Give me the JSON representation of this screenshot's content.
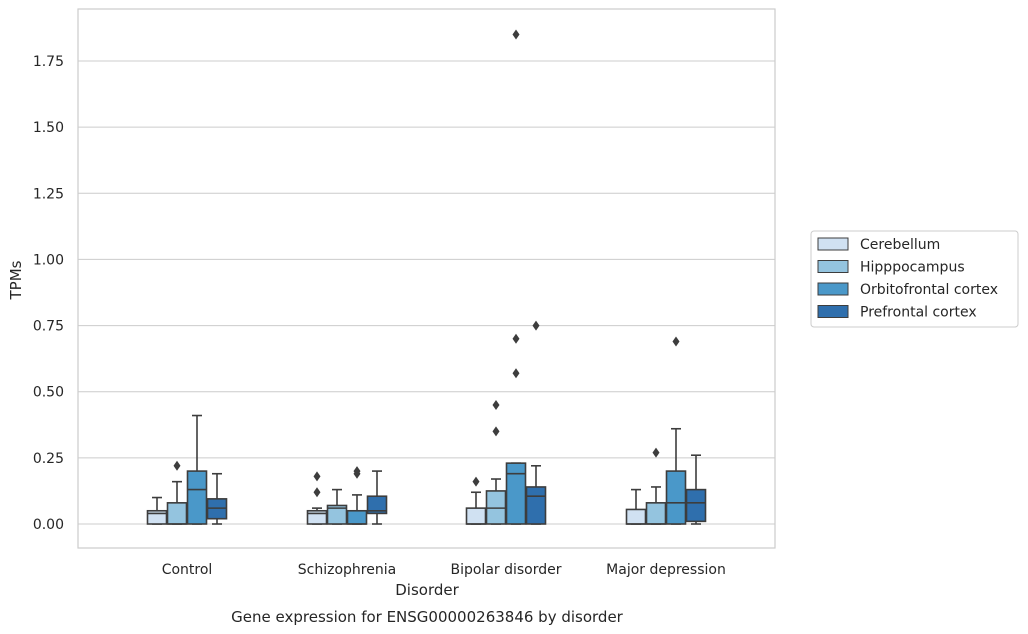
{
  "chart_data": {
    "type": "box",
    "title": "",
    "caption": "Gene expression for ENSG00000263846 by disorder",
    "xlabel": "Disorder",
    "ylabel": "TPMs",
    "ylim": [
      -0.09,
      1.95
    ],
    "yticks": [
      0.0,
      0.25,
      0.5,
      0.75,
      1.0,
      1.25,
      1.5,
      1.75
    ],
    "ytick_labels": [
      "0.00",
      "0.25",
      "0.50",
      "0.75",
      "1.00",
      "1.25",
      "1.50",
      "1.75"
    ],
    "grid": "horizontal",
    "legend_position": "right",
    "categories": [
      "Control",
      "Schizophrenia",
      "Bipolar disorder",
      "Major depression"
    ],
    "series": [
      {
        "name": "Cerebellum",
        "color": "#d0e1f2",
        "boxes": [
          {
            "whisker_low": 0.0,
            "q1": 0.0,
            "median": 0.04,
            "q3": 0.05,
            "whisker_high": 0.1,
            "outliers": []
          },
          {
            "whisker_low": 0.0,
            "q1": 0.0,
            "median": 0.04,
            "q3": 0.05,
            "whisker_high": 0.06,
            "outliers": [
              0.12,
              0.18
            ]
          },
          {
            "whisker_low": 0.0,
            "q1": 0.0,
            "median": 0.0,
            "q3": 0.06,
            "whisker_high": 0.12,
            "outliers": [
              0.16
            ]
          },
          {
            "whisker_low": 0.0,
            "q1": 0.0,
            "median": 0.0,
            "q3": 0.055,
            "whisker_high": 0.13,
            "outliers": []
          }
        ]
      },
      {
        "name": "Hipppocampus",
        "color": "#94c4df",
        "boxes": [
          {
            "whisker_low": 0.0,
            "q1": 0.0,
            "median": 0.0,
            "q3": 0.08,
            "whisker_high": 0.16,
            "outliers": [
              0.22
            ]
          },
          {
            "whisker_low": 0.0,
            "q1": 0.0,
            "median": 0.06,
            "q3": 0.07,
            "whisker_high": 0.13,
            "outliers": []
          },
          {
            "whisker_low": 0.0,
            "q1": 0.0,
            "median": 0.06,
            "q3": 0.125,
            "whisker_high": 0.17,
            "outliers": [
              0.35,
              0.45
            ]
          },
          {
            "whisker_low": 0.0,
            "q1": 0.0,
            "median": 0.0,
            "q3": 0.08,
            "whisker_high": 0.14,
            "outliers": [
              0.27
            ]
          }
        ]
      },
      {
        "name": "Orbitofrontal cortex",
        "color": "#4a98c9",
        "boxes": [
          {
            "whisker_low": 0.0,
            "q1": 0.0,
            "median": 0.13,
            "q3": 0.2,
            "whisker_high": 0.41,
            "outliers": []
          },
          {
            "whisker_low": 0.0,
            "q1": 0.0,
            "median": 0.0,
            "q3": 0.05,
            "whisker_high": 0.11,
            "outliers": [
              0.19,
              0.2
            ]
          },
          {
            "whisker_low": 0.0,
            "q1": 0.0,
            "median": 0.19,
            "q3": 0.23,
            "whisker_high": 0.23,
            "outliers": [
              0.57,
              0.7,
              1.85
            ]
          },
          {
            "whisker_low": 0.0,
            "q1": 0.0,
            "median": 0.08,
            "q3": 0.2,
            "whisker_high": 0.36,
            "outliers": [
              0.69
            ]
          }
        ]
      },
      {
        "name": "Prefrontal cortex",
        "color": "#2f6fad",
        "boxes": [
          {
            "whisker_low": 0.0,
            "q1": 0.02,
            "median": 0.06,
            "q3": 0.095,
            "whisker_high": 0.19,
            "outliers": []
          },
          {
            "whisker_low": 0.0,
            "q1": 0.04,
            "median": 0.05,
            "q3": 0.105,
            "whisker_high": 0.2,
            "outliers": []
          },
          {
            "whisker_low": 0.0,
            "q1": 0.0,
            "median": 0.105,
            "q3": 0.14,
            "whisker_high": 0.22,
            "outliers": [
              0.75
            ]
          },
          {
            "whisker_low": 0.0,
            "q1": 0.01,
            "median": 0.08,
            "q3": 0.13,
            "whisker_high": 0.26,
            "outliers": []
          }
        ]
      }
    ]
  },
  "colors": {
    "grid": "#cccccc",
    "axes_frame": "#cccccc",
    "box_edge": "#3d3d3d",
    "text": "#262626"
  }
}
